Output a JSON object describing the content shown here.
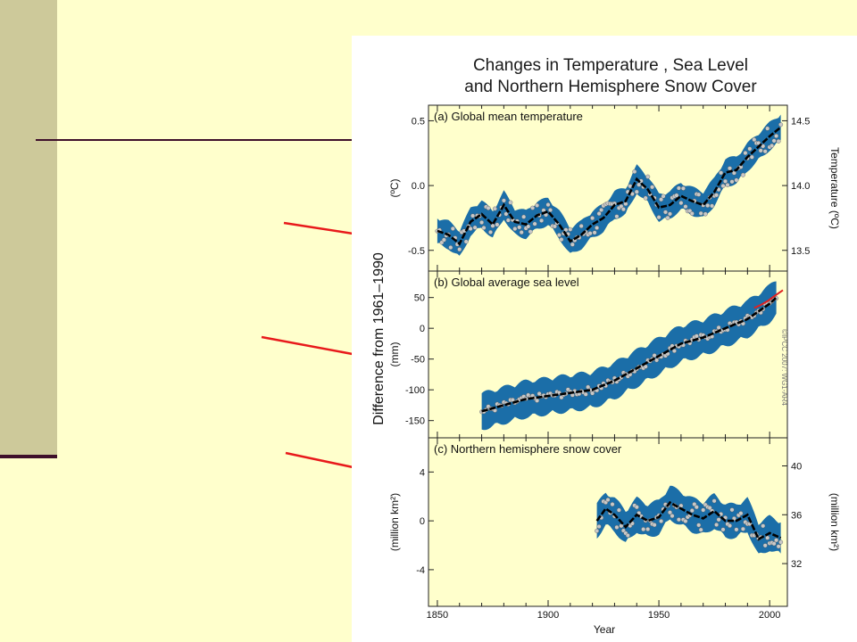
{
  "chart_data": {
    "type": "line",
    "title_lines": [
      "Changes in Temperature , Sea Level",
      "and Northern Hemisphere Snow Cover"
    ],
    "shared_ylabel": "Difference from 1961–1990",
    "xlabel": "Year",
    "xlim": [
      1846,
      2008
    ],
    "x_ticks": [
      1850,
      1900,
      1950,
      2000
    ],
    "copyright": "©IPCC 2007: WG1-AR4",
    "panels": [
      {
        "label": "(a) Global mean temperature",
        "ylabel_left": "(ºC)",
        "ylabel_right": "Temperature (ºC)",
        "ylim": [
          -0.66,
          0.62
        ],
        "y_ticks": [
          0.5,
          0.0,
          -0.5
        ],
        "y_tick_labels": [
          "0.5",
          "0.0",
          "-0.5"
        ],
        "right_ticks": [
          {
            "value": 0.5,
            "label": "14.5"
          },
          {
            "value": 0.0,
            "label": "14.0"
          },
          {
            "value": -0.5,
            "label": "13.5"
          }
        ],
        "band_half_width": 0.1,
        "smooth_x": [
          1850,
          1855,
          1860,
          1865,
          1870,
          1875,
          1880,
          1885,
          1890,
          1895,
          1900,
          1905,
          1910,
          1915,
          1920,
          1925,
          1930,
          1935,
          1940,
          1945,
          1950,
          1955,
          1960,
          1965,
          1970,
          1975,
          1980,
          1985,
          1990,
          1995,
          2000,
          2005
        ],
        "smooth_y": [
          -0.35,
          -0.38,
          -0.45,
          -0.28,
          -0.22,
          -0.3,
          -0.15,
          -0.28,
          -0.3,
          -0.23,
          -0.2,
          -0.3,
          -0.43,
          -0.38,
          -0.3,
          -0.25,
          -0.15,
          -0.12,
          0.05,
          -0.03,
          -0.17,
          -0.15,
          -0.08,
          -0.12,
          -0.15,
          -0.05,
          0.1,
          0.12,
          0.22,
          0.3,
          0.38,
          0.45
        ],
        "obs_scatter": 0.1
      },
      {
        "label": "(b) Global average sea level",
        "ylabel_left": "(mm)",
        "ylim": [
          -178,
          93
        ],
        "y_ticks": [
          50,
          0,
          -50,
          -100,
          -150
        ],
        "y_tick_labels": [
          "50",
          "0",
          "-50",
          "-100",
          "-150"
        ],
        "band_half_width": 28,
        "smooth_x": [
          1870,
          1880,
          1890,
          1900,
          1910,
          1920,
          1930,
          1940,
          1950,
          1960,
          1970,
          1980,
          1990,
          2000,
          2003
        ],
        "smooth_y": [
          -135,
          -125,
          -115,
          -110,
          -105,
          -100,
          -85,
          -65,
          -45,
          -25,
          -15,
          0,
          15,
          40,
          50
        ],
        "obs_scatter": 6,
        "satellite_series": {
          "x": [
            1993,
            1996,
            1999,
            2002,
            2006
          ],
          "y": [
            33,
            38,
            44,
            52,
            62
          ],
          "color": "#e02020"
        }
      },
      {
        "label": "(c) Northern hemisphere snow cover",
        "ylabel_left": "(million km²)",
        "ylabel_right": "(million km²)",
        "ylim": [
          -7,
          6.8
        ],
        "y_ticks": [
          4,
          0,
          -4
        ],
        "y_tick_labels": [
          "4",
          "0",
          "-4"
        ],
        "right_ticks": [
          {
            "value": 4.5,
            "label": "40"
          },
          {
            "value": 0.5,
            "label": "36"
          },
          {
            "value": -3.5,
            "label": "32"
          }
        ],
        "band_half_width": 1.3,
        "smooth_x": [
          1922,
          1926,
          1930,
          1935,
          1940,
          1945,
          1950,
          1955,
          1960,
          1965,
          1970,
          1975,
          1980,
          1985,
          1990,
          1995,
          2000,
          2005
        ],
        "smooth_y": [
          0,
          1,
          0.5,
          -0.5,
          0.5,
          0,
          0.3,
          1.5,
          1,
          0.5,
          0.2,
          0.8,
          0,
          0,
          0.5,
          -1.5,
          -1,
          -1.4
        ],
        "obs_scatter": 1.0
      }
    ],
    "colors": {
      "band": "#1b6ea8",
      "line": "#000000",
      "points": "#c8c8c8",
      "arrows": "#e8191b",
      "sidebar": "#cdc99a",
      "rule": "#3e0f2a",
      "background": "#ffffcc"
    }
  }
}
